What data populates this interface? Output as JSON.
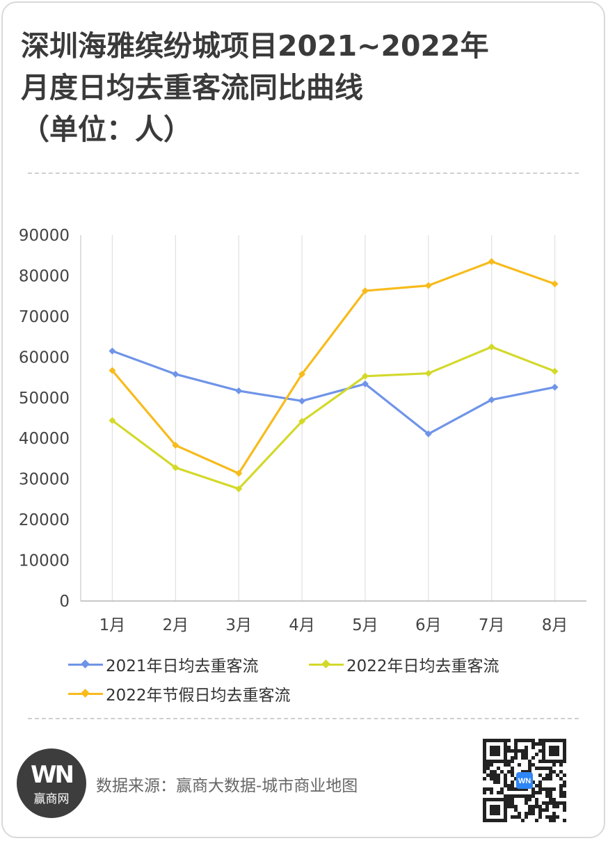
{
  "title_lines": [
    "深圳海雅缤纷城项目2021~2022年",
    "月度日均去重客流同比曲线",
    "（单位：人）"
  ],
  "chart_data": {
    "type": "line",
    "title": "深圳海雅缤纷城项目2021~2022年月度日均去重客流同比曲线（单位：人）",
    "categories": [
      "1月",
      "2月",
      "3月",
      "4月",
      "5月",
      "6月",
      "7月",
      "8月"
    ],
    "ylim": [
      0,
      90000
    ],
    "yticks": [
      0,
      10000,
      20000,
      30000,
      40000,
      50000,
      60000,
      70000,
      80000,
      90000
    ],
    "ytick_labels": [
      "0",
      "10000",
      "20000",
      "30000",
      "40000",
      "50000",
      "60000",
      "70000",
      "80000",
      "90000"
    ],
    "grid": "vertical",
    "legend_position": "bottom",
    "series": [
      {
        "name": "2021年日均去重客流",
        "color": "#6f94e8",
        "values": [
          61500,
          55800,
          51700,
          49200,
          53400,
          41100,
          49500,
          52600
        ]
      },
      {
        "name": "2022年日均去重客流",
        "color": "#d3d92a",
        "values": [
          44400,
          32800,
          27600,
          44200,
          55300,
          56000,
          62500,
          56500
        ]
      },
      {
        "name": "2022年节假日均去重客流",
        "color": "#f7bb1c",
        "values": [
          56700,
          38300,
          31400,
          55800,
          76300,
          77600,
          83500,
          78000
        ]
      }
    ]
  },
  "footer": {
    "logo_mark": "WN",
    "logo_name": "赢商网",
    "source": "数据来源：赢商大数据-城市商业地图",
    "qr_badge": "WN"
  }
}
